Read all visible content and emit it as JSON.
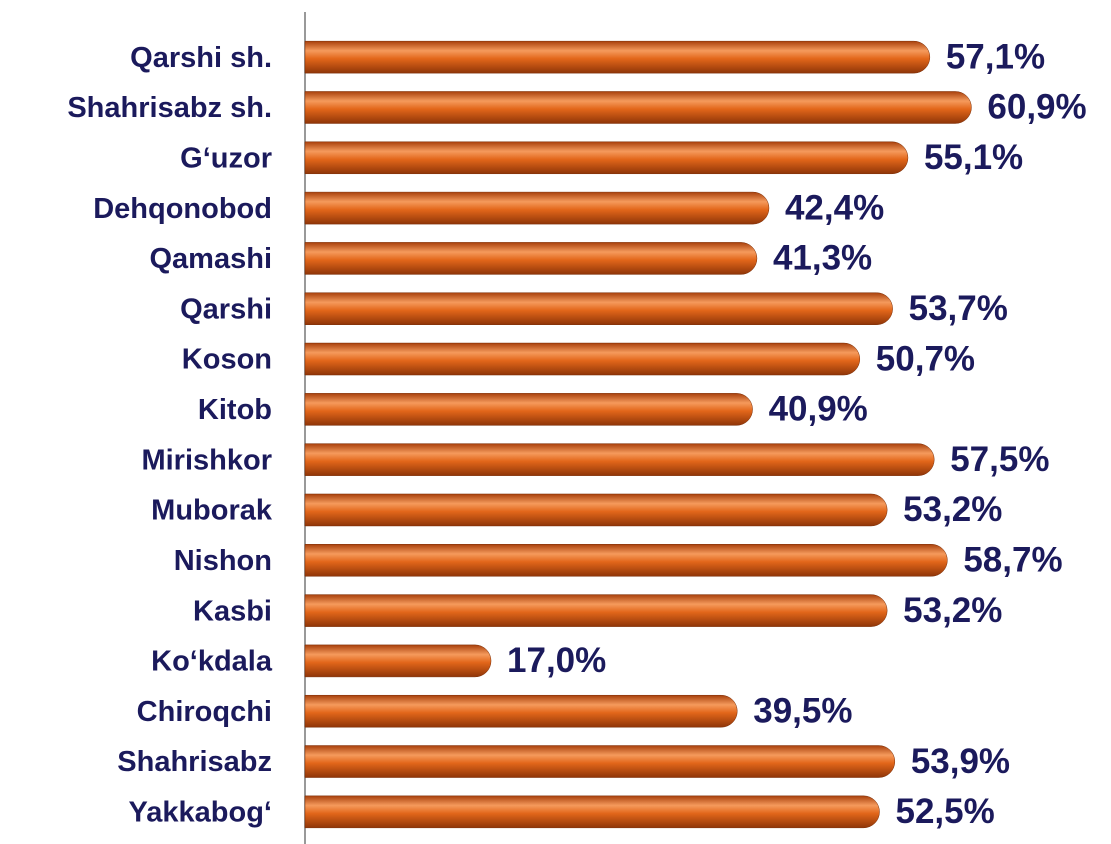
{
  "chart_data": {
    "type": "bar",
    "orientation": "horizontal",
    "categories": [
      "Qarshi sh.",
      "Shahrisabz sh.",
      "G‘uzor",
      "Dehqonobod",
      "Qamashi",
      "Qarshi",
      "Koson",
      "Kitob",
      "Mirishkor",
      "Muborak",
      "Nishon",
      "Kasbi",
      "Ko‘kdala",
      "Chiroqchi",
      "Shahrisabz",
      "Yakkabog‘"
    ],
    "values": [
      57.1,
      60.9,
      55.1,
      42.4,
      41.3,
      53.7,
      50.7,
      40.9,
      57.5,
      53.2,
      58.7,
      53.2,
      17.0,
      39.5,
      53.9,
      52.5
    ],
    "value_labels": [
      "57,1%",
      "60,9%",
      "55,1%",
      "42,4%",
      "41,3%",
      "53,7%",
      "50,7%",
      "40,9%",
      "57,5%",
      "53,2%",
      "58,7%",
      "53,2%",
      "17,0%",
      "39,5%",
      "53,9%",
      "52,5%"
    ],
    "color": "#e2661a",
    "xlim": [
      0,
      70
    ]
  }
}
